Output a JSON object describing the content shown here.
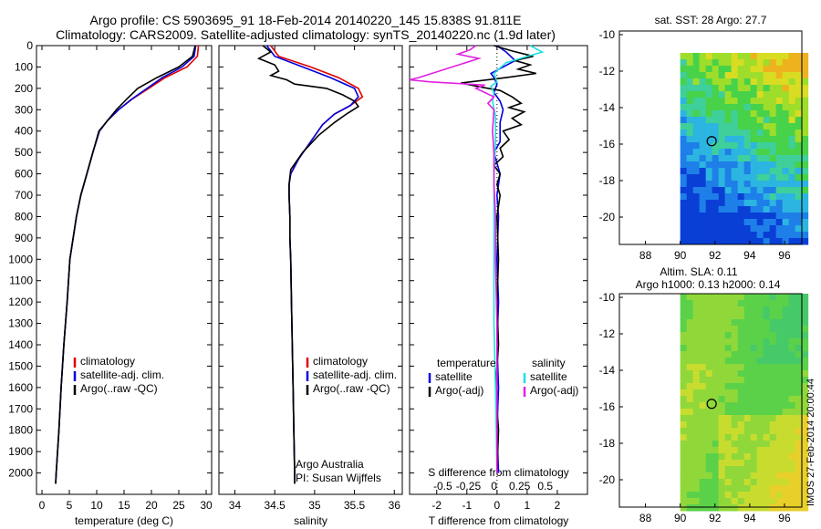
{
  "header": {
    "line1": "Argo profile: CS 5903695_91 18-Feb-2014 20140220_145 15.838S 91.811E",
    "line2": "Climatology: CARS2009. Satellite-adjusted climatology: synTS_20140220.nc (1.9d later)"
  },
  "side_label": "IMOS 27-Feb-2014 20:00:44",
  "colors": {
    "climatology": "#e00000",
    "satellite": "#0000e0",
    "argo": "#000000",
    "sat_s": "#20e0e0",
    "argo_s": "#e020e0"
  },
  "chart_data": [
    {
      "id": "temperature",
      "type": "line",
      "xlabel": "temperature (deg C)",
      "ylabel": "",
      "xlim": [
        -1,
        31
      ],
      "ylim": [
        2100,
        0
      ],
      "xticks": [
        0,
        5,
        10,
        15,
        20,
        25,
        30
      ],
      "yticks": [
        0,
        100,
        200,
        300,
        400,
        500,
        600,
        700,
        800,
        900,
        1000,
        1100,
        1200,
        1300,
        1400,
        1500,
        1600,
        1700,
        1800,
        1900,
        2000
      ],
      "legend": [
        "climatology",
        "satellite-adj. clim.",
        "Argo(..raw -QC)"
      ],
      "series": [
        {
          "name": "climatology",
          "color": "#e00000",
          "points": [
            [
              28.6,
              0
            ],
            [
              28.4,
              50
            ],
            [
              26.5,
              100
            ],
            [
              22.5,
              150
            ],
            [
              19.5,
              200
            ],
            [
              16.5,
              250
            ],
            [
              14,
              300
            ],
            [
              12,
              350
            ],
            [
              10.5,
              400
            ],
            [
              9.3,
              500
            ],
            [
              8.2,
              600
            ],
            [
              7.1,
              700
            ],
            [
              6.3,
              800
            ],
            [
              5.7,
              900
            ],
            [
              5.1,
              1000
            ],
            [
              4.6,
              1200
            ],
            [
              4,
              1400
            ],
            [
              3.5,
              1600
            ],
            [
              3.1,
              1800
            ],
            [
              2.6,
              2000
            ],
            [
              2.5,
              2050
            ]
          ]
        },
        {
          "name": "satellite-adj. clim.",
          "color": "#0000e0",
          "points": [
            [
              28.1,
              0
            ],
            [
              27.8,
              50
            ],
            [
              25.6,
              100
            ],
            [
              22,
              150
            ],
            [
              19.2,
              200
            ],
            [
              16.4,
              250
            ],
            [
              14,
              300
            ],
            [
              12,
              350
            ],
            [
              10.5,
              400
            ],
            [
              9.3,
              500
            ],
            [
              8.2,
              600
            ],
            [
              7.1,
              700
            ],
            [
              6.3,
              800
            ],
            [
              5.7,
              900
            ],
            [
              5.1,
              1000
            ],
            [
              4.6,
              1200
            ],
            [
              4,
              1400
            ],
            [
              3.5,
              1600
            ],
            [
              3.1,
              1800
            ],
            [
              2.6,
              2000
            ],
            [
              2.5,
              2050
            ]
          ]
        },
        {
          "name": "Argo(..raw -QC)",
          "color": "#000000",
          "points": [
            [
              28,
              0
            ],
            [
              27.5,
              50
            ],
            [
              25,
              100
            ],
            [
              21,
              150
            ],
            [
              17.5,
              200
            ],
            [
              15.5,
              250
            ],
            [
              13.6,
              300
            ],
            [
              12,
              350
            ],
            [
              10.4,
              400
            ],
            [
              9.3,
              500
            ],
            [
              8.2,
              600
            ],
            [
              7.1,
              700
            ],
            [
              6.3,
              800
            ],
            [
              5.7,
              900
            ],
            [
              5.1,
              1000
            ],
            [
              4.6,
              1200
            ],
            [
              4,
              1400
            ],
            [
              3.5,
              1600
            ],
            [
              3.1,
              1800
            ],
            [
              2.6,
              2000
            ],
            [
              2.5,
              2050
            ]
          ]
        }
      ]
    },
    {
      "id": "salinity",
      "type": "line",
      "xlabel": "salinity",
      "ylabel": "",
      "xlim": [
        33.8,
        36.1
      ],
      "ylim": [
        2100,
        0
      ],
      "xticks": [
        34,
        34.5,
        35,
        35.5,
        36
      ],
      "legend": [
        "climatology",
        "satellite-adj. clim.",
        "Argo(..raw -QC)"
      ],
      "annotation": [
        "Argo Australia",
        "PI: Susan Wijffels"
      ],
      "series": [
        {
          "name": "climatology",
          "color": "#e00000",
          "points": [
            [
              34.45,
              0
            ],
            [
              34.55,
              50
            ],
            [
              34.95,
              100
            ],
            [
              35.3,
              150
            ],
            [
              35.55,
              200
            ],
            [
              35.6,
              240
            ],
            [
              35.45,
              280
            ],
            [
              35.25,
              320
            ],
            [
              35.1,
              370
            ],
            [
              34.95,
              450
            ],
            [
              34.8,
              530
            ],
            [
              34.7,
              600
            ],
            [
              34.68,
              650
            ],
            [
              34.68,
              700
            ],
            [
              34.69,
              800
            ],
            [
              34.69,
              900
            ],
            [
              34.7,
              1000
            ],
            [
              34.71,
              1200
            ],
            [
              34.72,
              1400
            ],
            [
              34.73,
              1600
            ],
            [
              34.74,
              1800
            ],
            [
              34.75,
              2000
            ],
            [
              34.75,
              2050
            ]
          ]
        },
        {
          "name": "satellite-adj. clim.",
          "color": "#0000e0",
          "points": [
            [
              34.4,
              0
            ],
            [
              34.5,
              50
            ],
            [
              34.85,
              100
            ],
            [
              35.2,
              150
            ],
            [
              35.5,
              200
            ],
            [
              35.55,
              240
            ],
            [
              35.45,
              280
            ],
            [
              35.25,
              320
            ],
            [
              35.1,
              370
            ],
            [
              34.95,
              450
            ],
            [
              34.8,
              530
            ],
            [
              34.7,
              600
            ],
            [
              34.68,
              650
            ],
            [
              34.68,
              700
            ],
            [
              34.69,
              800
            ],
            [
              34.69,
              900
            ],
            [
              34.7,
              1000
            ],
            [
              34.71,
              1200
            ],
            [
              34.72,
              1400
            ],
            [
              34.73,
              1600
            ],
            [
              34.74,
              1800
            ],
            [
              34.75,
              2000
            ],
            [
              34.75,
              2050
            ]
          ]
        },
        {
          "name": "Argo(..raw -QC)",
          "color": "#000000",
          "points": [
            [
              34.35,
              0
            ],
            [
              34.45,
              30
            ],
            [
              34.3,
              60
            ],
            [
              34.5,
              90
            ],
            [
              34.55,
              120
            ],
            [
              34.45,
              140
            ],
            [
              34.65,
              160
            ],
            [
              34.75,
              180
            ],
            [
              35.15,
              200
            ],
            [
              35.35,
              230
            ],
            [
              35.5,
              260
            ],
            [
              35.55,
              285
            ],
            [
              35.4,
              320
            ],
            [
              35.25,
              360
            ],
            [
              35.05,
              420
            ],
            [
              34.85,
              500
            ],
            [
              34.7,
              580
            ],
            [
              34.68,
              650
            ],
            [
              34.68,
              700
            ],
            [
              34.69,
              800
            ],
            [
              34.69,
              900
            ],
            [
              34.7,
              1000
            ],
            [
              34.71,
              1200
            ],
            [
              34.72,
              1400
            ],
            [
              34.73,
              1600
            ],
            [
              34.74,
              1800
            ],
            [
              34.75,
              2000
            ],
            [
              34.75,
              2050
            ]
          ]
        }
      ]
    },
    {
      "id": "difference",
      "type": "line",
      "xlabel": "T difference from climatology",
      "toplabel": "S difference from climatology",
      "xlim": [
        -2.9,
        3
      ],
      "ylim": [
        2100,
        0
      ],
      "xticks": [
        -2,
        -1,
        0,
        1,
        2
      ],
      "sticks": [
        "-0.5",
        "-0.25",
        "0",
        "0.25",
        "0.5"
      ],
      "sticks_at": [
        -1.8,
        -0.95,
        -0.1,
        0.75,
        1.6
      ],
      "legend_t": [
        "temperature",
        "satellite",
        "Argo(-adj)"
      ],
      "legend_s": [
        "salinity",
        "satellite",
        "Argo(-adj)"
      ],
      "series": [
        {
          "name": "satellite",
          "color": "#0000e0",
          "points": [
            [
              0,
              0
            ],
            [
              0.3,
              30
            ],
            [
              0.6,
              70
            ],
            [
              0.2,
              100
            ],
            [
              -0.2,
              130
            ],
            [
              -0.1,
              150
            ],
            [
              0,
              180
            ],
            [
              -0.1,
              220
            ],
            [
              0.1,
              260
            ],
            [
              0.2,
              300
            ],
            [
              0.1,
              360
            ],
            [
              0.1,
              450
            ],
            [
              -0.1,
              500
            ],
            [
              0,
              550
            ],
            [
              0.1,
              600
            ],
            [
              0,
              700
            ],
            [
              0.05,
              800
            ],
            [
              0,
              1000
            ],
            [
              0.05,
              1200
            ],
            [
              0,
              1400
            ],
            [
              0.05,
              1600
            ],
            [
              0,
              1800
            ],
            [
              0.05,
              2000
            ]
          ]
        },
        {
          "name": "Argo(-adj)",
          "color": "#000000",
          "points": [
            [
              -0.1,
              0
            ],
            [
              0.5,
              25
            ],
            [
              1.2,
              50
            ],
            [
              0.6,
              70
            ],
            [
              1.1,
              90
            ],
            [
              0.7,
              110
            ],
            [
              1.3,
              130
            ],
            [
              0.3,
              150
            ],
            [
              -1.2,
              175
            ],
            [
              -0.5,
              195
            ],
            [
              0.1,
              210
            ],
            [
              0.5,
              240
            ],
            [
              0.8,
              270
            ],
            [
              0.4,
              290
            ],
            [
              0.9,
              310
            ],
            [
              0.5,
              340
            ],
            [
              0.8,
              370
            ],
            [
              0.2,
              400
            ],
            [
              0.4,
              440
            ],
            [
              0.1,
              480
            ],
            [
              0.2,
              520
            ],
            [
              -0.1,
              560
            ],
            [
              0.1,
              600
            ],
            [
              0,
              650
            ],
            [
              0.1,
              700
            ],
            [
              0,
              800
            ],
            [
              0.05,
              1000
            ],
            [
              0,
              1200
            ],
            [
              0.05,
              1400
            ],
            [
              -0.05,
              1600
            ],
            [
              0.05,
              1800
            ],
            [
              0,
              2000
            ]
          ]
        },
        {
          "name": "sat-salinity",
          "color": "#20e0e0",
          "points": [
            [
              1.1,
              0
            ],
            [
              1.5,
              30
            ],
            [
              0.3,
              80
            ],
            [
              -0.1,
              130
            ],
            [
              0,
              170
            ],
            [
              -0.2,
              190
            ],
            [
              -0.1,
              220
            ],
            [
              -0.15,
              260
            ],
            [
              -0.05,
              330
            ],
            [
              -0.05,
              450
            ],
            [
              -0.1,
              600
            ],
            [
              -0.1,
              800
            ],
            [
              -0.1,
              1000
            ],
            [
              -0.1,
              1300
            ],
            [
              -0.05,
              1600
            ],
            [
              0,
              2000
            ]
          ]
        },
        {
          "name": "argo-salinity",
          "color": "#e020e0",
          "points": [
            [
              -0.7,
              0
            ],
            [
              -0.9,
              20
            ],
            [
              -1.3,
              40
            ],
            [
              -0.6,
              60
            ],
            [
              -2.6,
              150
            ],
            [
              -2.9,
              160
            ],
            [
              -2.2,
              170
            ],
            [
              -0.4,
              185
            ],
            [
              -0.7,
              200
            ],
            [
              -0.4,
              220
            ],
            [
              -0.1,
              240
            ],
            [
              -0.3,
              270
            ],
            [
              -0.1,
              300
            ],
            [
              -0.15,
              400
            ],
            [
              -0.1,
              500
            ],
            [
              -0.1,
              650
            ],
            [
              -0.05,
              800
            ],
            [
              -0.05,
              1000
            ],
            [
              0,
              1300
            ],
            [
              0,
              1600
            ],
            [
              0,
              2000
            ]
          ]
        }
      ]
    },
    {
      "id": "sst-map",
      "type": "heatmap",
      "title": "sat. SST: 28 Argo: 27.7",
      "xlim": [
        86.5,
        97
      ],
      "ylim": [
        -21.5,
        -9.8
      ],
      "xticks": [
        88,
        90,
        92,
        94,
        96
      ],
      "yticks": [
        -10,
        -12,
        -14,
        -16,
        -18,
        -20
      ],
      "argo_position": [
        91.811,
        -15.838
      ]
    },
    {
      "id": "sla-map",
      "type": "heatmap",
      "title1": "Altim. SLA: 0.11",
      "title2": "Argo h1000: 0.13 h2000: 0.14",
      "xlim": [
        86.5,
        97
      ],
      "ylim": [
        -21.5,
        -9.8
      ],
      "xticks": [
        88,
        90,
        92,
        94,
        96
      ],
      "yticks": [
        -10,
        -12,
        -14,
        -16,
        -18,
        -20
      ],
      "argo_position": [
        91.811,
        -15.838
      ]
    }
  ]
}
